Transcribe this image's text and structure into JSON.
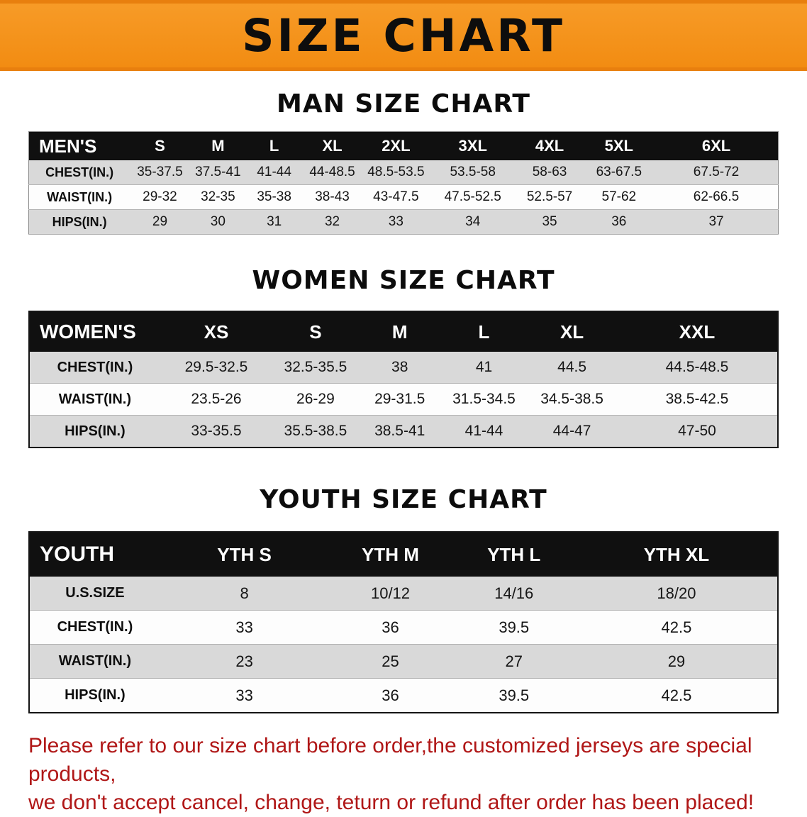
{
  "banner": {
    "title": "SIZE CHART",
    "bg_color": "#f28c12",
    "text_color": "#0d0d0d"
  },
  "colors": {
    "header_bar": "#101010",
    "stripe_row": "#d9d9d9",
    "plain_row": "#fdfdfd",
    "disclaimer_red": "#b01717"
  },
  "sections": [
    {
      "heading": "MAN SIZE CHART",
      "table": {
        "header_label": "MEN'S",
        "columns": [
          "S",
          "M",
          "L",
          "XL",
          "2XL",
          "3XL",
          "4XL",
          "5XL",
          "6XL"
        ],
        "rows": [
          {
            "label": "CHEST(IN.)",
            "values": [
              "35-37.5",
              "37.5-41",
              "41-44",
              "44-48.5",
              "48.5-53.5",
              "53.5-58",
              "58-63",
              "63-67.5",
              "67.5-72"
            ]
          },
          {
            "label": "WAIST(IN.)",
            "values": [
              "29-32",
              "32-35",
              "35-38",
              "38-43",
              "43-47.5",
              "47.5-52.5",
              "52.5-57",
              "57-62",
              "62-66.5"
            ]
          },
          {
            "label": "HIPS(IN.)",
            "values": [
              "29",
              "30",
              "31",
              "32",
              "33",
              "34",
              "35",
              "36",
              "37"
            ]
          }
        ]
      }
    },
    {
      "heading": "WOMEN SIZE CHART",
      "table": {
        "header_label": "WOMEN'S",
        "columns": [
          "XS",
          "S",
          "M",
          "L",
          "XL",
          "XXL"
        ],
        "rows": [
          {
            "label": "CHEST(IN.)",
            "values": [
              "29.5-32.5",
              "32.5-35.5",
              "38",
              "41",
              "44.5",
              "44.5-48.5"
            ]
          },
          {
            "label": "WAIST(IN.)",
            "values": [
              "23.5-26",
              "26-29",
              "29-31.5",
              "31.5-34.5",
              "34.5-38.5",
              "38.5-42.5"
            ]
          },
          {
            "label": "HIPS(IN.)",
            "values": [
              "33-35.5",
              "35.5-38.5",
              "38.5-41",
              "41-44",
              "44-47",
              "47-50"
            ]
          }
        ]
      }
    },
    {
      "heading": "YOUTH SIZE CHART",
      "table": {
        "header_label": "YOUTH",
        "columns": [
          "YTH S",
          "YTH M",
          "YTH L",
          "YTH XL"
        ],
        "rows": [
          {
            "label": "U.S.SIZE",
            "values": [
              "8",
              "10/12",
              "14/16",
              "18/20"
            ]
          },
          {
            "label": "CHEST(IN.)",
            "values": [
              "33",
              "36",
              "39.5",
              "42.5"
            ]
          },
          {
            "label": "WAIST(IN.)",
            "values": [
              "23",
              "25",
              "27",
              "29"
            ]
          },
          {
            "label": "HIPS(IN.)",
            "values": [
              "33",
              "36",
              "39.5",
              "42.5"
            ]
          }
        ]
      }
    }
  ],
  "disclaimer": {
    "line1": "Please refer to our size chart before order,the customized jerseys are special products,",
    "line2": "we don't accept cancel, change, teturn or refund after order has been placed!"
  }
}
